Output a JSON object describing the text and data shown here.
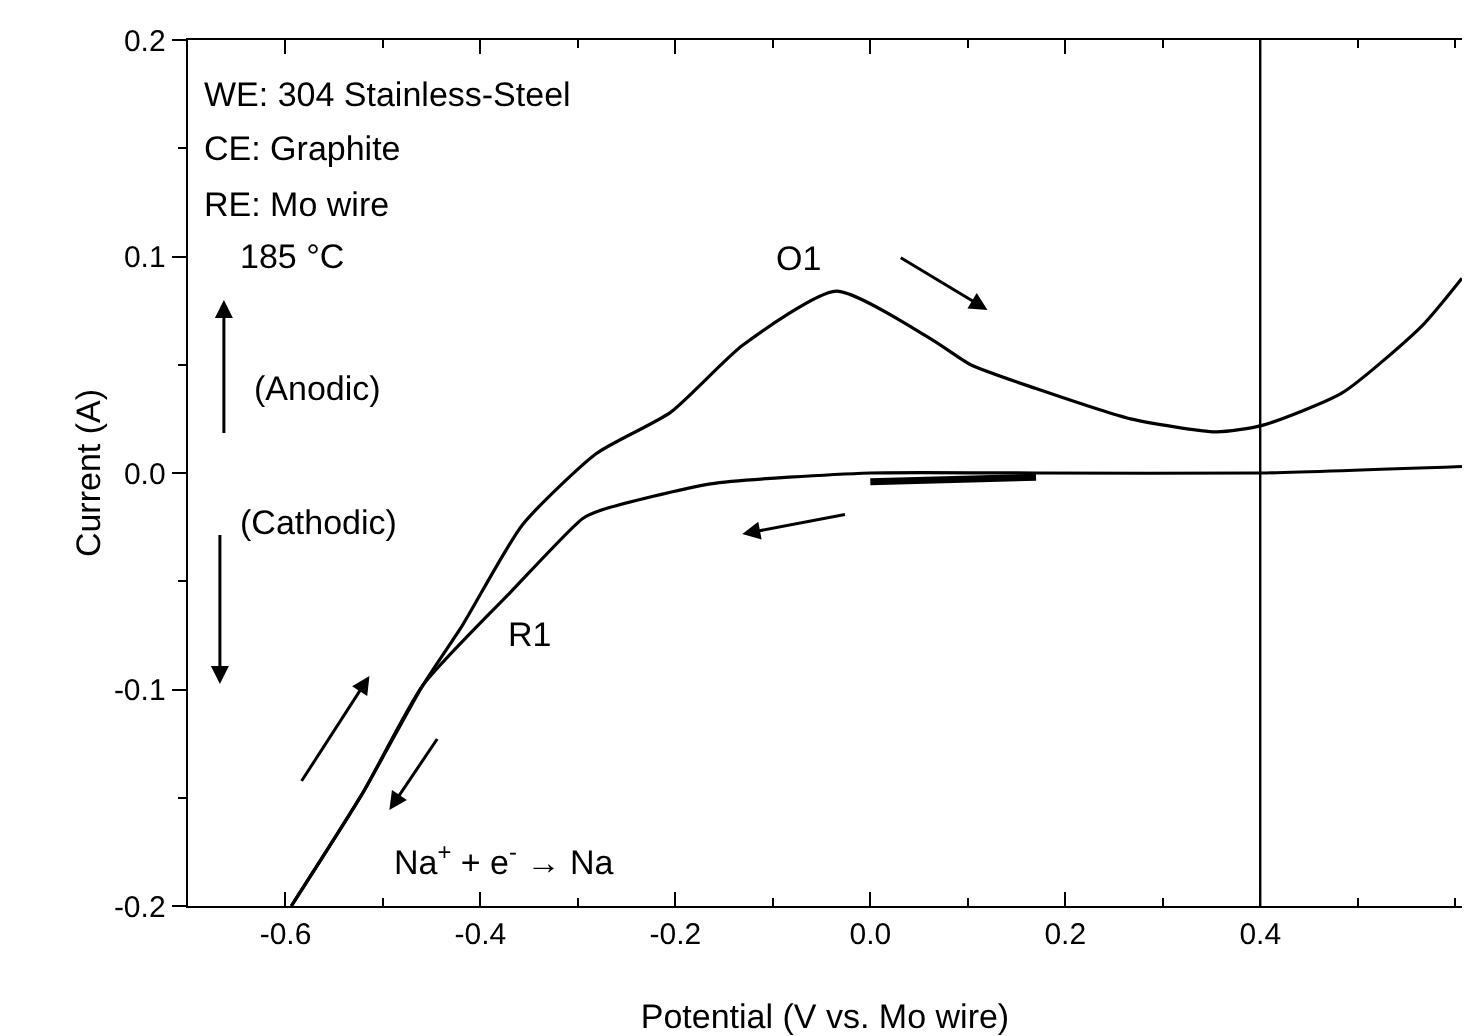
{
  "chart_data": {
    "type": "line",
    "xlabel": "Potential (V vs. Mo wire)",
    "ylabel": "Current (A)",
    "xlim": [
      -0.7,
      0.607
    ],
    "xticks": [
      -0.6,
      -0.4,
      -0.2,
      {
        "value": 0,
        "label": "0.0"
      },
      0.2,
      0.4
    ],
    "ylim": [
      -0.2,
      0.2
    ],
    "yticks": [
      -0.2,
      -0.1,
      {
        "value": 0,
        "label": "0.0"
      },
      0.1,
      0.2
    ],
    "grid": false,
    "marker": "none",
    "line_style": "solid",
    "series": [
      {
        "color": "#000000",
        "x": [
          -0.594,
          -0.521,
          -0.459,
          -0.418,
          -0.357,
          -0.281,
          -0.205,
          -0.131,
          -0.035,
          0.062,
          0.103,
          0.17,
          0.267,
          0.355,
          0.402,
          0.484,
          0.566,
          0.607
        ],
        "values": [
          -0.2,
          -0.148,
          -0.098,
          -0.07,
          -0.024,
          0.009,
          0.028,
          0.059,
          0.084,
          0.062,
          0.05,
          0.039,
          0.025,
          0.019,
          0.022,
          0.037,
          0.068,
          0.09
        ]
      },
      {
        "color": "#000000",
        "x": [
          0.607,
          0.4,
          0.17,
          0.0,
          -0.164,
          -0.275,
          -0.295,
          -0.369,
          -0.459,
          -0.521,
          -0.594
        ],
        "values": [
          0.003,
          0.0,
          0.0,
          0.0,
          -0.005,
          -0.017,
          -0.021,
          -0.055,
          -0.098,
          -0.148,
          -0.2
        ]
      },
      {
        "color": "#000000",
        "x": [
          0.0,
          0.17
        ],
        "values": [
          -0.004,
          -0.002
        ]
      }
    ],
    "ref_lines": [
      {
        "axis": "x",
        "value": 0.4,
        "color": "#000000"
      }
    ],
    "annotations": [
      "WE: 304 Stainless-Steel",
      "CE: Graphite",
      "RE: Mo wire",
      "185 °C",
      "(Anodic)",
      "(Cathodic)",
      "Na$^{+}$ + e$^{-}$ → Na",
      "O1",
      "R1"
    ]
  }
}
